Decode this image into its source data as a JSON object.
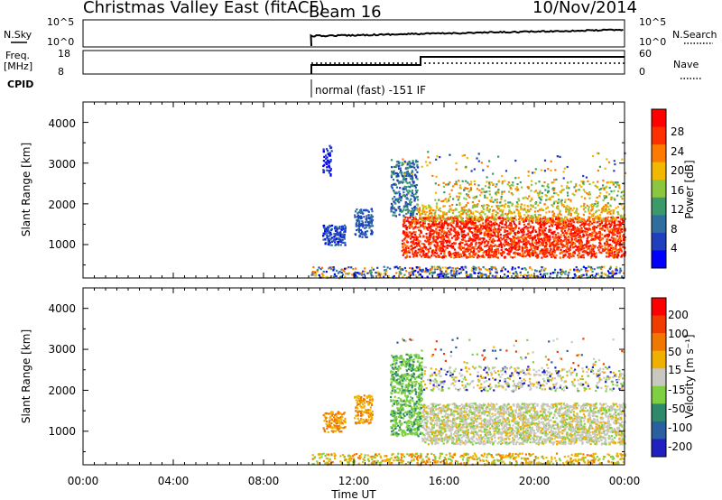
{
  "header": {
    "station": "Christmas Valley East (fitACF)",
    "beam": "Beam 16",
    "date": "10/Nov/2014"
  },
  "status_panels": {
    "nsky_label": "N.Sky",
    "nsky_ticks": [
      "10^5",
      "10^0"
    ],
    "nsearch_label": "N.Search",
    "nsearch_ticks": [
      "10^5",
      "10^0"
    ],
    "freq_label": "Freq.",
    "freq_unit": "[MHz]",
    "freq_ticks": [
      "18",
      "8"
    ],
    "nave_label": "Nave",
    "nave_ticks": [
      "60",
      "0"
    ],
    "cpid_label": "CPID",
    "cpid_text": "normal (fast) -151 IF"
  },
  "chart_data": [
    {
      "type": "heatmap",
      "name": "power",
      "ylabel": "Slant Range [km]",
      "xlabel": "Time UT",
      "xlim": [
        "00:00",
        "24:00"
      ],
      "ylim": [
        180,
        4500
      ],
      "y_ticks": [
        "4000",
        "3000",
        "2000",
        "1000"
      ],
      "x_ticks": [
        "00:00",
        "04:00",
        "08:00",
        "12:00",
        "16:00",
        "20:00",
        "00:00"
      ],
      "colorbar": {
        "label": "Power [dB]",
        "range": [
          0,
          32
        ],
        "ticks": [
          "28",
          "24",
          "20",
          "16",
          "12",
          "8",
          "4"
        ],
        "colors": [
          "#0000ff",
          "#1f3fbf",
          "#2f6f9f",
          "#3a9a6a",
          "#8cc63f",
          "#f2b800",
          "#ff7a00",
          "#ff3000",
          "#ff0000"
        ]
      }
    },
    {
      "type": "heatmap",
      "name": "velocity",
      "ylabel": "Slant Range [km]",
      "xlabel": "Time UT",
      "xlim": [
        "00:00",
        "24:00"
      ],
      "ylim": [
        180,
        4500
      ],
      "y_ticks": [
        "4000",
        "3000",
        "2000",
        "1000"
      ],
      "x_ticks": [
        "00:00",
        "04:00",
        "08:00",
        "12:00",
        "16:00",
        "20:00",
        "00:00"
      ],
      "colorbar": {
        "label": "Velocity [m s⁻¹]",
        "ticks": [
          "200",
          "100",
          "50",
          "15",
          "-15",
          "-50",
          "-100",
          "-200"
        ],
        "colors": [
          "#2020c0",
          "#2a60a0",
          "#2e8a6a",
          "#7fd040",
          "#c8c8c0",
          "#f0b000",
          "#f07800",
          "#f03c00",
          "#ff0000"
        ]
      }
    }
  ]
}
